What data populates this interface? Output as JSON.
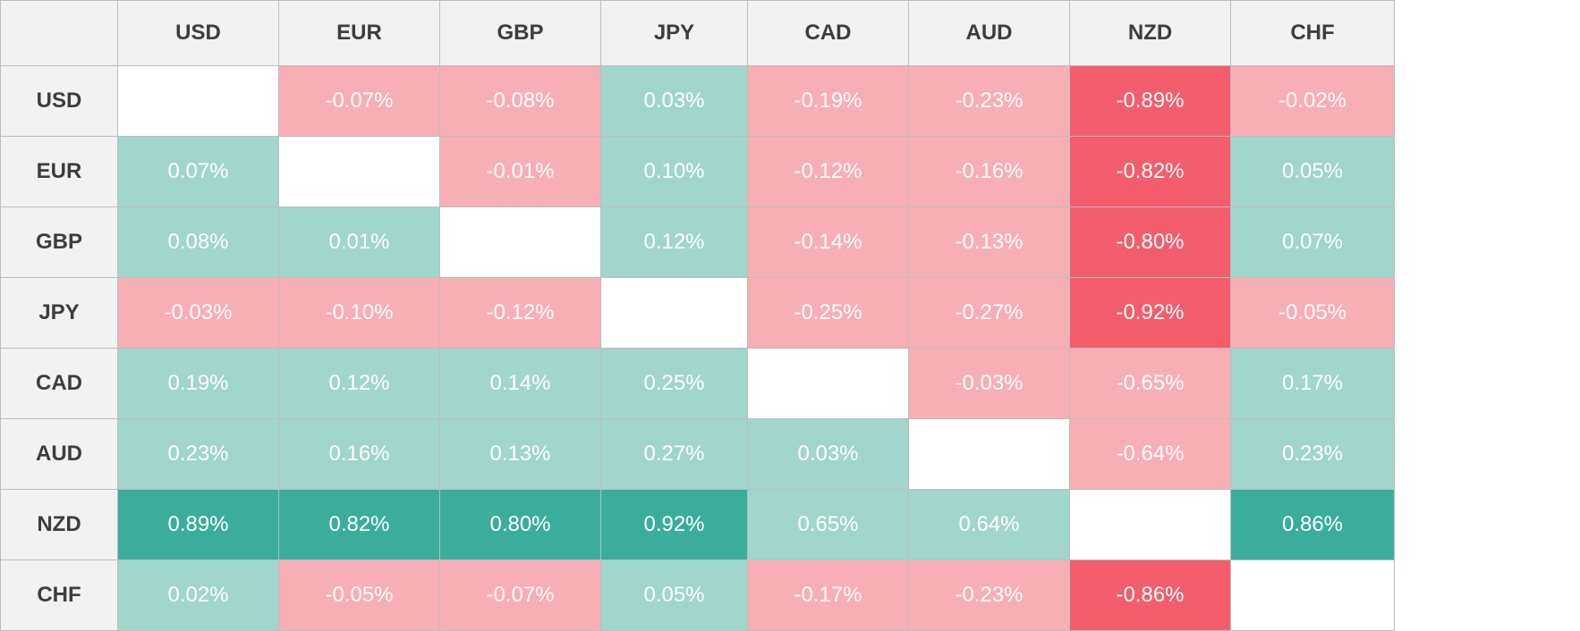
{
  "chart_data": {
    "type": "heatmap",
    "title": "",
    "columns": [
      "USD",
      "EUR",
      "GBP",
      "JPY",
      "CAD",
      "AUD",
      "NZD",
      "CHF"
    ],
    "rows": [
      "USD",
      "EUR",
      "GBP",
      "JPY",
      "CAD",
      "AUD",
      "NZD",
      "CHF"
    ],
    "values": [
      [
        null,
        -0.07,
        -0.08,
        0.03,
        -0.19,
        -0.23,
        -0.89,
        -0.02
      ],
      [
        0.07,
        null,
        -0.01,
        0.1,
        -0.12,
        -0.16,
        -0.82,
        0.05
      ],
      [
        0.08,
        0.01,
        null,
        0.12,
        -0.14,
        -0.13,
        -0.8,
        0.07
      ],
      [
        -0.03,
        -0.1,
        -0.12,
        null,
        -0.25,
        -0.27,
        -0.92,
        -0.05
      ],
      [
        0.19,
        0.12,
        0.14,
        0.25,
        null,
        -0.03,
        -0.65,
        0.17
      ],
      [
        0.23,
        0.16,
        0.13,
        0.27,
        0.03,
        null,
        -0.64,
        0.23
      ],
      [
        0.89,
        0.82,
        0.8,
        0.92,
        0.65,
        0.64,
        null,
        0.86
      ],
      [
        0.02,
        -0.05,
        -0.07,
        0.05,
        -0.17,
        -0.23,
        -0.86,
        null
      ]
    ],
    "unit": "%",
    "strong_threshold": 0.7,
    "colors": {
      "positive_light": "#a0d6cc",
      "positive_strong": "#3aae9a",
      "negative_light": "#f8aeb5",
      "negative_strong": "#f35d6c",
      "diagonal": "#ffffff",
      "header_bg": "#f2f2f2",
      "header_text": "#3d3d3d",
      "cell_text": "#ffffff",
      "border": "#bdbdbd"
    }
  }
}
